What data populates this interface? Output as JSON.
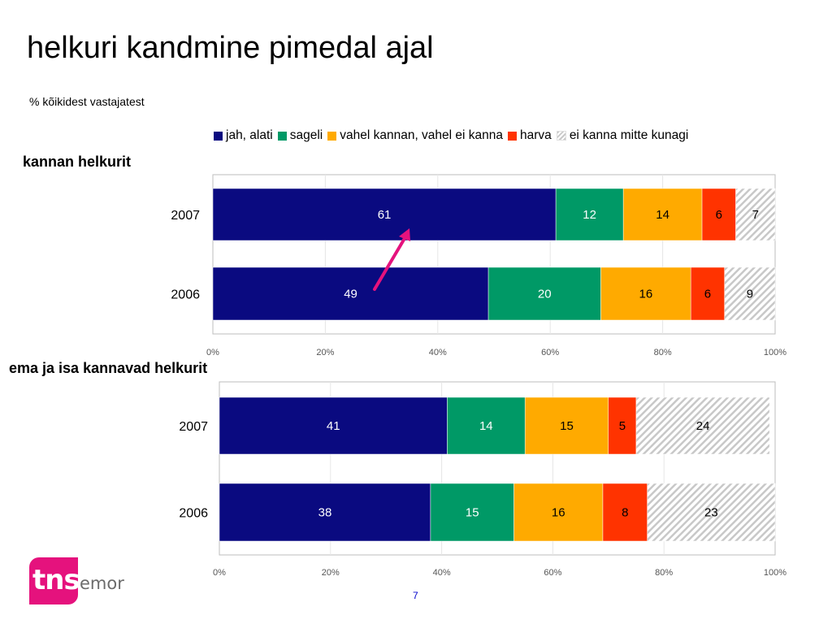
{
  "slide": {
    "title": "helkuri kandmine pimedal ajal",
    "subtitle": "% kõikidest vastajatest",
    "page_number": "7"
  },
  "legend": [
    {
      "label": "jah, alati",
      "color": "#0a0a80",
      "pattern": "solid"
    },
    {
      "label": "sageli",
      "color": "#009966",
      "pattern": "solid"
    },
    {
      "label": "vahel kannan, vahel ei kanna",
      "color": "#ffaa00",
      "pattern": "solid"
    },
    {
      "label": "harva",
      "color": "#ff3300",
      "pattern": "solid"
    },
    {
      "label": "ei kanna mitte kunagi",
      "color": "#d0d0d0",
      "pattern": "hatched"
    }
  ],
  "logo": {
    "brand": "tns",
    "suffix": "emor",
    "color": "#e5127d"
  },
  "annotation": {
    "type": "arrow",
    "color": "#e5127d",
    "from": {
      "series": "jah, alati",
      "year": "2006"
    },
    "to": {
      "series": "jah, alati",
      "year": "2007"
    }
  },
  "chart_data": [
    {
      "type": "bar",
      "orientation": "horizontal",
      "stacked": true,
      "title": "kannan helkurit",
      "categories": [
        "2007",
        "2006"
      ],
      "series": [
        {
          "name": "jah, alati",
          "values": [
            61,
            49
          ]
        },
        {
          "name": "sageli",
          "values": [
            12,
            20
          ]
        },
        {
          "name": "vahel kannan, vahel ei kanna",
          "values": [
            14,
            16
          ]
        },
        {
          "name": "harva",
          "values": [
            6,
            6
          ]
        },
        {
          "name": "ei kanna mitte kunagi",
          "values": [
            7,
            9
          ]
        }
      ],
      "xlim": [
        0,
        100
      ],
      "xticks": [
        "0%",
        "20%",
        "40%",
        "60%",
        "80%",
        "100%"
      ],
      "grid": true,
      "legend_position": "top"
    },
    {
      "type": "bar",
      "orientation": "horizontal",
      "stacked": true,
      "title": "ema ja isa kannavad helkurit",
      "categories": [
        "2007",
        "2006"
      ],
      "series": [
        {
          "name": "jah, alati",
          "values": [
            41,
            38
          ]
        },
        {
          "name": "sageli",
          "values": [
            14,
            15
          ]
        },
        {
          "name": "vahel kannan, vahel ei kanna",
          "values": [
            15,
            16
          ]
        },
        {
          "name": "harva",
          "values": [
            5,
            8
          ]
        },
        {
          "name": "ei kanna mitte kunagi",
          "values": [
            24,
            23
          ]
        }
      ],
      "xlim": [
        0,
        100
      ],
      "xticks": [
        "0%",
        "20%",
        "40%",
        "60%",
        "80%",
        "100%"
      ],
      "grid": true,
      "legend_position": "top"
    }
  ]
}
